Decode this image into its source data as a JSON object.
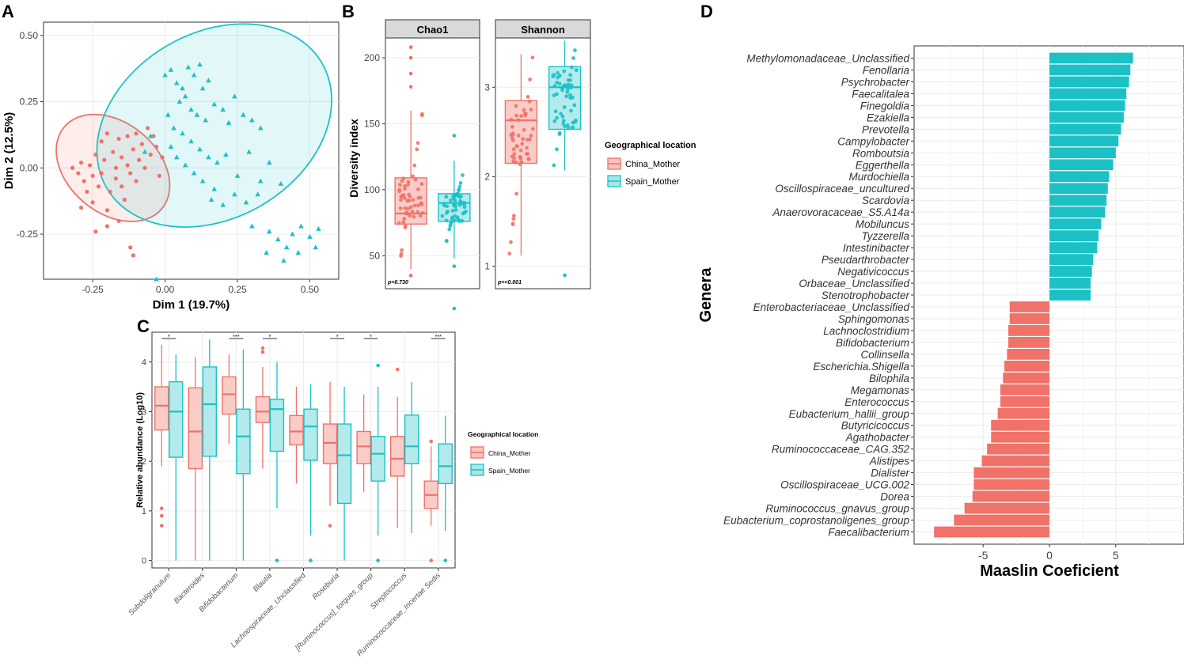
{
  "colors": {
    "china": "#f07268",
    "spain": "#1cc1c6",
    "china_fill": "#f9c3be",
    "spain_fill": "#a6e6e8",
    "grid": "#ebebeb",
    "strip": "#d9d9d9"
  },
  "panel_labels": [
    "A",
    "B",
    "C",
    "D"
  ],
  "chart_data": [
    {
      "panel": "A",
      "type": "scatter",
      "xlabel": "Dim 1 (19.7%)",
      "ylabel": "Dim 2 (12.5%)",
      "xlim": [
        -0.42,
        0.6
      ],
      "ylim": [
        -0.42,
        0.55
      ],
      "xticks": [
        "-0.25",
        "0.00",
        "0.25",
        "0.50"
      ],
      "yticks": [
        "-0.25",
        "0.00",
        "0.25",
        "0.50"
      ],
      "ellipses": [
        {
          "group": "China_Mother",
          "center": [
            -0.18,
            0.0
          ],
          "rx": 0.22,
          "ry": 0.17,
          "angle": 40
        },
        {
          "group": "Spain_Mother",
          "center": [
            0.17,
            0.16
          ],
          "rx": 0.43,
          "ry": 0.35,
          "angle": -30
        }
      ],
      "series": [
        {
          "name": "China_Mother",
          "marker": "circle",
          "points": [
            [
              -0.32,
              0.0
            ],
            [
              -0.3,
              -0.02
            ],
            [
              -0.29,
              0.02
            ],
            [
              -0.28,
              -0.05
            ],
            [
              -0.27,
              -0.09
            ],
            [
              -0.26,
              0.01
            ],
            [
              -0.25,
              -0.03
            ],
            [
              -0.25,
              -0.13
            ],
            [
              -0.24,
              0.05
            ],
            [
              -0.23,
              -0.07
            ],
            [
              -0.22,
              0.1
            ],
            [
              -0.22,
              -0.02
            ],
            [
              -0.21,
              0.03
            ],
            [
              -0.2,
              -0.16
            ],
            [
              -0.2,
              0.13
            ],
            [
              -0.19,
              -0.09
            ],
            [
              -0.18,
              0.06
            ],
            [
              -0.17,
              -0.04
            ],
            [
              -0.17,
              0.0
            ],
            [
              -0.16,
              0.11
            ],
            [
              -0.15,
              -0.07
            ],
            [
              -0.15,
              0.04
            ],
            [
              -0.14,
              -0.12
            ],
            [
              -0.13,
              0.12
            ],
            [
              -0.13,
              0.01
            ],
            [
              -0.12,
              -0.02
            ],
            [
              -0.11,
              0.07
            ],
            [
              -0.1,
              0.13
            ],
            [
              -0.1,
              -0.05
            ],
            [
              -0.09,
              0.03
            ],
            [
              -0.08,
              0.09
            ],
            [
              -0.07,
              0.0
            ],
            [
              -0.06,
              0.15
            ],
            [
              -0.05,
              0.05
            ],
            [
              -0.04,
              0.12
            ],
            [
              -0.03,
              0.08
            ],
            [
              -0.02,
              -0.03
            ],
            [
              -0.01,
              0.04
            ],
            [
              -0.12,
              -0.3
            ],
            [
              -0.11,
              -0.33
            ],
            [
              -0.24,
              -0.24
            ],
            [
              -0.29,
              -0.15
            ],
            [
              -0.2,
              -0.22
            ],
            [
              -0.16,
              -0.2
            ]
          ]
        },
        {
          "name": "Spain_Mother",
          "marker": "triangle",
          "points": [
            [
              0.0,
              0.35
            ],
            [
              0.02,
              0.37
            ],
            [
              0.04,
              0.32
            ],
            [
              0.06,
              0.3
            ],
            [
              0.08,
              0.38
            ],
            [
              0.1,
              0.35
            ],
            [
              0.12,
              0.39
            ],
            [
              0.13,
              0.3
            ],
            [
              0.15,
              0.33
            ],
            [
              0.05,
              0.25
            ],
            [
              0.07,
              0.27
            ],
            [
              0.09,
              0.22
            ],
            [
              0.11,
              0.2
            ],
            [
              0.14,
              0.18
            ],
            [
              0.17,
              0.24
            ],
            [
              0.2,
              0.22
            ],
            [
              0.22,
              0.17
            ],
            [
              0.24,
              0.27
            ],
            [
              0.27,
              0.2
            ],
            [
              0.3,
              0.18
            ],
            [
              0.33,
              0.15
            ],
            [
              0.01,
              0.2
            ],
            [
              0.03,
              0.15
            ],
            [
              0.06,
              0.13
            ],
            [
              0.09,
              0.1
            ],
            [
              0.12,
              0.07
            ],
            [
              0.15,
              0.04
            ],
            [
              0.18,
              0.02
            ],
            [
              0.02,
              0.08
            ],
            [
              0.04,
              0.04
            ],
            [
              0.07,
              0.01
            ],
            [
              0.1,
              -0.02
            ],
            [
              0.13,
              -0.05
            ],
            [
              0.17,
              -0.08
            ],
            [
              0.21,
              0.05
            ],
            [
              0.25,
              -0.03
            ],
            [
              0.29,
              0.06
            ],
            [
              0.33,
              -0.05
            ],
            [
              0.36,
              0.02
            ],
            [
              0.4,
              -0.06
            ],
            [
              0.3,
              -0.22
            ],
            [
              0.36,
              -0.24
            ],
            [
              0.39,
              -0.27
            ],
            [
              0.42,
              -0.3
            ],
            [
              0.44,
              -0.25
            ],
            [
              0.47,
              -0.22
            ],
            [
              0.5,
              -0.26
            ],
            [
              0.53,
              -0.23
            ],
            [
              0.46,
              -0.32
            ],
            [
              0.41,
              -0.35
            ],
            [
              0.35,
              -0.32
            ],
            [
              0.52,
              -0.3
            ],
            [
              -0.03,
              -0.42
            ],
            [
              -0.05,
              0.12
            ],
            [
              -0.07,
              0.06
            ],
            [
              0.16,
              -0.12
            ],
            [
              0.2,
              -0.14
            ],
            [
              0.24,
              -0.1
            ],
            [
              0.28,
              -0.13
            ],
            [
              0.32,
              -0.1
            ]
          ]
        }
      ]
    },
    {
      "panel": "B",
      "type": "box",
      "ylabel": "Diversity index",
      "facets": [
        {
          "title": "Chao1",
          "p_label": "p=0.730",
          "ylim": [
            25,
            215
          ],
          "yticks": [
            50,
            100,
            150,
            200
          ],
          "boxes": [
            {
              "group": "China_Mother",
              "min": 40,
              "q1": 74,
              "median": 82,
              "q3": 109,
              "max": 160,
              "outliers": [
                178,
                188,
                200,
                208,
                35
              ]
            },
            {
              "group": "Spain_Mother",
              "min": 48,
              "q1": 76,
              "median": 90,
              "q3": 97,
              "max": 122,
              "outliers": [
                141,
                10,
                42
              ]
            }
          ]
        },
        {
          "title": "Shannon",
          "p_label": "p=<0.001",
          "ylim": [
            0.75,
            3.55
          ],
          "yticks": [
            1,
            2,
            3
          ],
          "boxes": [
            {
              "group": "China_Mother",
              "min": 1.12,
              "q1": 2.15,
              "median": 2.63,
              "q3": 2.85,
              "max": 3.37,
              "outliers": []
            },
            {
              "group": "Spain_Mother",
              "min": 2.07,
              "q1": 2.53,
              "median": 3.0,
              "q3": 3.23,
              "max": 3.52,
              "outliers": [
                0.9
              ]
            }
          ]
        }
      ],
      "legend": {
        "title": "Geographical location",
        "entries": [
          "China_Mother",
          "Spain_Mother"
        ]
      }
    },
    {
      "panel": "C",
      "type": "box",
      "ylabel": "Relative abundance (Log10)",
      "ylim": [
        -0.15,
        4.6
      ],
      "yticks": [
        0,
        1,
        2,
        3,
        4
      ],
      "categories": [
        "Subdoligranulum",
        "Bacteroides",
        "Bifidobacterium",
        "Blautia",
        "Lachnospiraceae_Unclassified",
        "Roseburia",
        "[Ruminococcus]_torques_group",
        "Streptococcus",
        "Ruminococcaceae_Incertae Sedis"
      ],
      "significance": [
        "*",
        "",
        "***",
        "*",
        "",
        "*",
        "*",
        "",
        "***"
      ],
      "series": [
        {
          "name": "China_Mother",
          "boxes": [
            {
              "min": 1.9,
              "q1": 2.63,
              "median": 3.12,
              "q3": 3.5,
              "max": 4.35,
              "outliers": [
                1.05,
                0.9,
                0.7
              ]
            },
            {
              "min": 0.0,
              "q1": 1.85,
              "median": 2.6,
              "q3": 3.48,
              "max": 4.1,
              "outliers": []
            },
            {
              "min": 2.35,
              "q1": 2.95,
              "median": 3.35,
              "q3": 3.7,
              "max": 4.15,
              "outliers": []
            },
            {
              "min": 1.85,
              "q1": 2.78,
              "median": 3.0,
              "q3": 3.3,
              "max": 3.9,
              "outliers": [
                4.2,
                4.28
              ]
            },
            {
              "min": 1.55,
              "q1": 2.33,
              "median": 2.6,
              "q3": 2.92,
              "max": 3.5,
              "outliers": []
            },
            {
              "min": 1.1,
              "q1": 1.95,
              "median": 2.37,
              "q3": 2.75,
              "max": 3.6,
              "outliers": [
                0.7
              ]
            },
            {
              "min": 1.38,
              "q1": 1.95,
              "median": 2.3,
              "q3": 2.6,
              "max": 3.35,
              "outliers": []
            },
            {
              "min": 0.65,
              "q1": 1.7,
              "median": 2.05,
              "q3": 2.5,
              "max": 3.3,
              "outliers": [
                3.85
              ]
            },
            {
              "min": 0.7,
              "q1": 1.05,
              "median": 1.32,
              "q3": 1.6,
              "max": 2.3,
              "outliers": [
                2.4,
                0.0
              ]
            }
          ]
        },
        {
          "name": "Spain_Mother",
          "boxes": [
            {
              "min": 0.0,
              "q1": 2.08,
              "median": 3.0,
              "q3": 3.6,
              "max": 4.15,
              "outliers": []
            },
            {
              "min": 0.0,
              "q1": 2.1,
              "median": 3.15,
              "q3": 3.9,
              "max": 4.45,
              "outliers": []
            },
            {
              "min": 0.0,
              "q1": 1.75,
              "median": 2.5,
              "q3": 3.05,
              "max": 4.25,
              "outliers": []
            },
            {
              "min": 1.05,
              "q1": 2.2,
              "median": 3.05,
              "q3": 3.25,
              "max": 4.0,
              "outliers": [
                0.0
              ]
            },
            {
              "min": 0.5,
              "q1": 2.02,
              "median": 2.7,
              "q3": 3.05,
              "max": 3.55,
              "outliers": [
                0.0
              ]
            },
            {
              "min": 0.0,
              "q1": 1.15,
              "median": 2.12,
              "q3": 2.75,
              "max": 3.5,
              "outliers": []
            },
            {
              "min": 0.5,
              "q1": 1.6,
              "median": 2.15,
              "q3": 2.5,
              "max": 3.5,
              "outliers": [
                3.93,
                0.0
              ]
            },
            {
              "min": 0.55,
              "q1": 1.95,
              "median": 2.3,
              "q3": 2.93,
              "max": 3.6,
              "outliers": []
            },
            {
              "min": 0.6,
              "q1": 1.55,
              "median": 1.9,
              "q3": 2.35,
              "max": 2.92,
              "outliers": [
                0.0
              ]
            }
          ]
        }
      ],
      "legend": {
        "title": "Geographical location",
        "entries": [
          "China_Mother",
          "Spain_Mother"
        ]
      }
    },
    {
      "panel": "D",
      "type": "bar",
      "orientation": "horizontal",
      "xlabel": "Maaslin Coeficient",
      "ylabel": "Genera",
      "xlim": [
        -10.2,
        10.2
      ],
      "xticks": [
        -5,
        0,
        5
      ],
      "categories": [
        "Methylomonadaceae_Unclassified",
        "Fenollaria",
        "Psychrobacter",
        "Faecalitalea",
        "Finegoldia",
        "Ezakiella",
        "Prevotella",
        "Campylobacter",
        "Romboutsia",
        "Eggerthella",
        "Murdochiella",
        "Oscillospiraceae_uncultured",
        "Scardovia",
        "Anaerovoracaceae_S5.A14a",
        "Mobiluncus",
        "Tyzzerella",
        "Intestinibacter",
        "Pseudarthrobacter",
        "Negativicoccus",
        "Orbaceae_Unclassified",
        "Stenotrophobacter",
        "Enterobacteriaceae_Unclassified",
        "Sphingomonas",
        "Lachnoclostridium",
        "Bifidobacterium",
        "Collinsella",
        "Escherichia.Shigella",
        "Bilophila",
        "Megamonas",
        "Enterococcus",
        "Eubacterium_hallii_group",
        "Butyricicoccus",
        "Agathobacter",
        "Ruminococcaceae_CAG.352",
        "Alistipes",
        "Dialister",
        "Oscillospiraceae_UCG.002",
        "Dorea",
        "Ruminococcus_gnavus_group",
        "Eubacterium_coprostanoligenes_group",
        "Faecalibacterium"
      ],
      "values": [
        6.3,
        6.1,
        6.0,
        5.8,
        5.7,
        5.6,
        5.4,
        5.2,
        5.0,
        4.8,
        4.5,
        4.4,
        4.3,
        4.2,
        3.9,
        3.7,
        3.6,
        3.3,
        3.2,
        3.1,
        3.1,
        -3.0,
        -3.0,
        -3.1,
        -3.1,
        -3.2,
        -3.4,
        -3.5,
        -3.7,
        -3.7,
        -3.9,
        -4.4,
        -4.4,
        -4.7,
        -5.1,
        -5.7,
        -5.7,
        -5.8,
        -6.4,
        -7.2,
        -8.7
      ]
    }
  ]
}
